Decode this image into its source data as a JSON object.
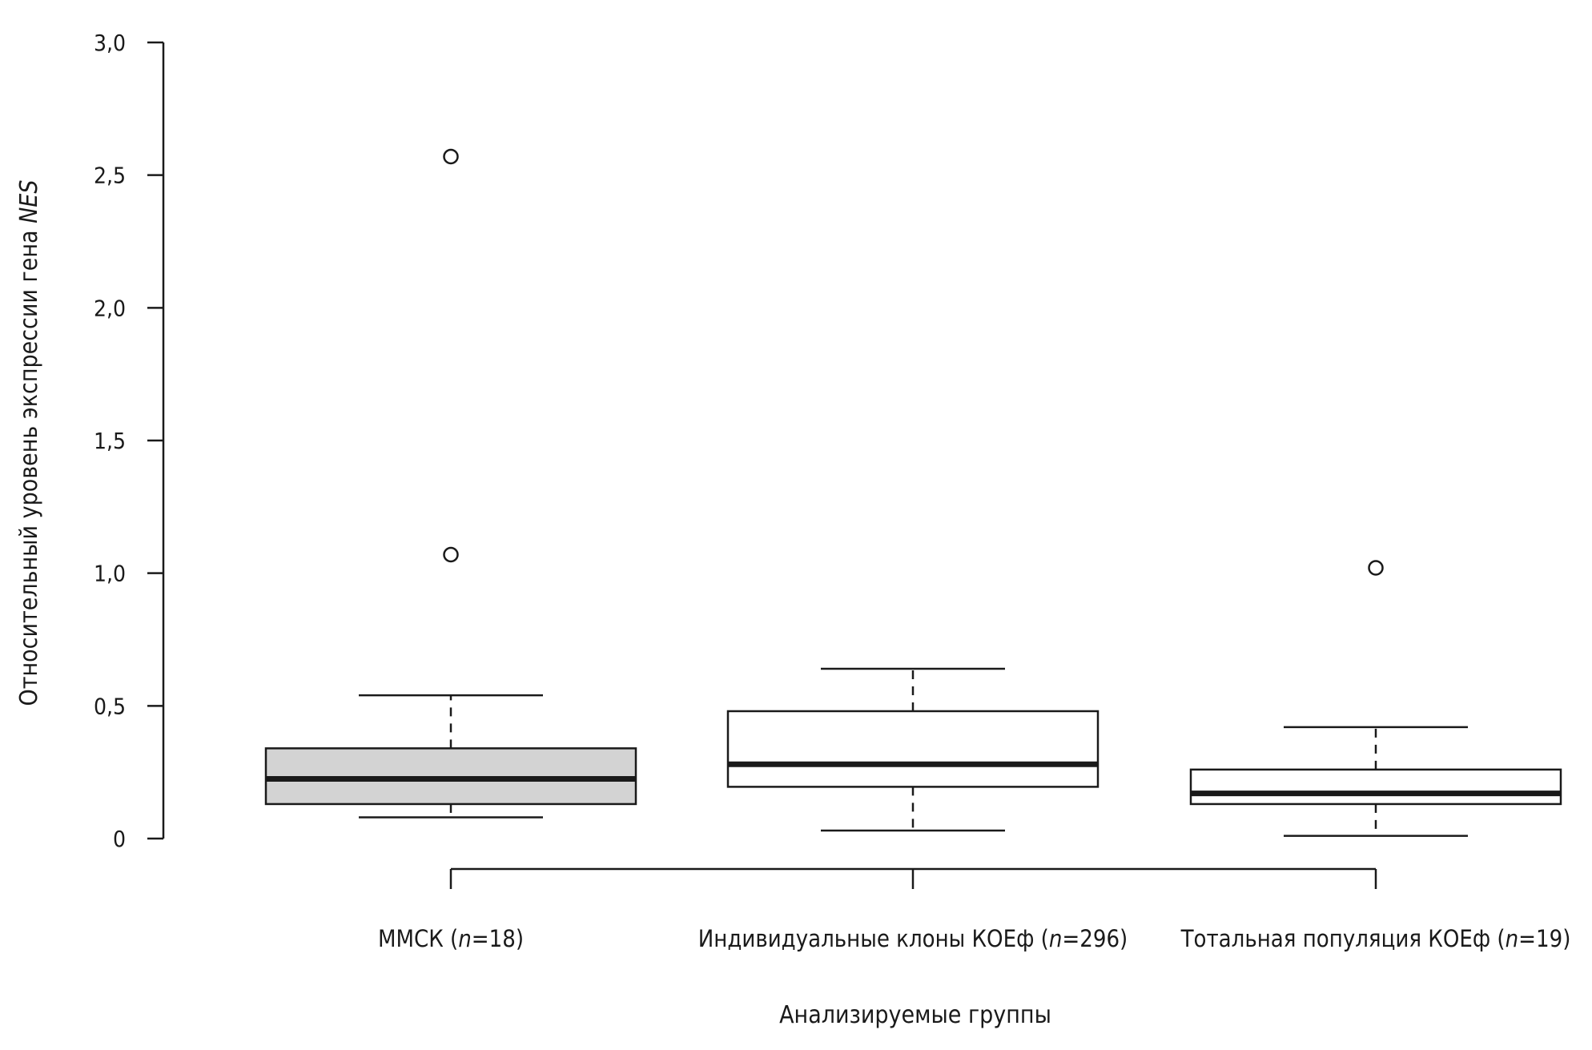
{
  "chart_data": {
    "type": "box",
    "ylabel_prefix": "Относительный уровень экспрессии гена ",
    "ylabel_gene": "NES",
    "xlabel": "Анализируемые группы",
    "ylim": [
      0,
      3.0
    ],
    "yticks": [
      0,
      0.5,
      1.0,
      1.5,
      2.0,
      2.5,
      3.0
    ],
    "ytick_labels": [
      "0",
      "0,5",
      "1,0",
      "1,5",
      "2,0",
      "2,5",
      "3,0"
    ],
    "groups": [
      {
        "label_prefix": "ММСК (",
        "label_n": "n",
        "label_suffix": "=18)",
        "whisker_low": 0.08,
        "q1": 0.13,
        "median": 0.225,
        "q3": 0.34,
        "whisker_high": 0.54,
        "outliers": [
          1.07,
          2.57
        ],
        "fill": "#d3d3d3"
      },
      {
        "label_prefix": "Индивидуальные клоны КОЕф (",
        "label_n": "n",
        "label_suffix": "=296)",
        "whisker_low": 0.03,
        "q1": 0.195,
        "median": 0.28,
        "q3": 0.48,
        "whisker_high": 0.64,
        "outliers": [],
        "fill": "#ffffff"
      },
      {
        "label_prefix": "Тотальная популяция КОЕф (",
        "label_n": "n",
        "label_suffix": "=19)",
        "whisker_low": 0.01,
        "q1": 0.13,
        "median": 0.17,
        "q3": 0.26,
        "whisker_high": 0.42,
        "outliers": [
          1.02
        ],
        "fill": "#ffffff"
      }
    ]
  }
}
